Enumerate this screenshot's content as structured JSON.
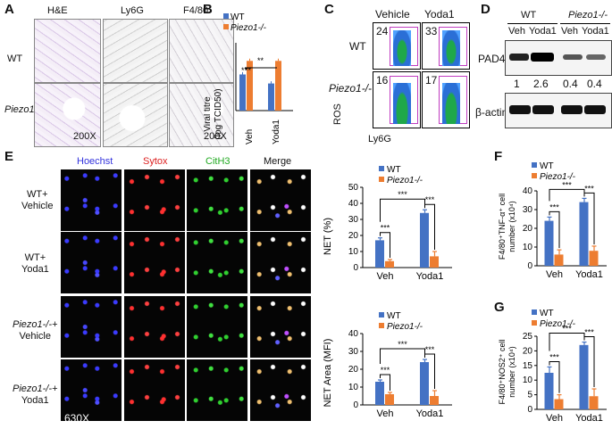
{
  "panel_letters": {
    "a": "A",
    "b": "B",
    "c": "C",
    "d": "D",
    "e": "E",
    "f": "F",
    "g": "G"
  },
  "colors": {
    "wt": "#4472C4",
    "ko": "#ED7D31",
    "gate": "#C03CC0"
  },
  "panel_a": {
    "cols": [
      "H&E",
      "Ly6G",
      "F4/80"
    ],
    "rows": [
      "WT",
      "Piezo1-/-"
    ],
    "mag": [
      "200X",
      "200X"
    ]
  },
  "panel_b": {
    "ylabel": "Viral titre",
    "ylabel2": "(log TCID50)",
    "sig1": "**",
    "sig2": "**",
    "sig3": "**"
  },
  "panel_c": {
    "cols": [
      "Vehicle",
      "Yoda1"
    ],
    "rows": [
      "WT",
      "Piezo1-/-"
    ],
    "values": [
      "24",
      "33",
      "16",
      "17"
    ],
    "xlabel": "Ly6G",
    "ylabel": "ROS"
  },
  "panel_d": {
    "header_wt": "WT",
    "header_ko": "Piezo1-/-",
    "lanes": [
      "Veh",
      "Yoda1",
      "Veh",
      "Yoda1"
    ],
    "pad4": "PAD4",
    "actin": "β-actin",
    "quant": [
      "1",
      "2.6",
      "0.4",
      "0.4"
    ]
  },
  "panel_e": {
    "cols": [
      "Hoechst",
      "Sytox",
      "CitH3",
      "Merge"
    ],
    "rows": [
      [
        "WT+",
        "Vehicle"
      ],
      [
        "WT+",
        "Yoda1"
      ],
      [
        "Piezo1-/-+",
        "Vehicle"
      ],
      [
        "Piezo1-/-+",
        "Yoda1"
      ]
    ],
    "mag": "630X"
  },
  "sig": "***",
  "legend": {
    "wt": "WT",
    "ko": "Piezo1-/-"
  },
  "chart_data": [
    {
      "id": "B",
      "type": "bar",
      "categories": [
        "Veh",
        "Yoda1"
      ],
      "ylabel": "Viral titre (log TCID50)",
      "ylim": [
        0,
        6
      ],
      "series": [
        {
          "name": "WT",
          "values": [
            3.2,
            2.4
          ],
          "errors": [
            0.2,
            0.2
          ]
        },
        {
          "name": "Piezo1-/-",
          "values": [
            4.4,
            4.4
          ],
          "errors": [
            0.2,
            0.2
          ]
        }
      ]
    },
    {
      "id": "E-NET",
      "type": "bar",
      "categories": [
        "Veh",
        "Yoda1"
      ],
      "ylabel": "NET (%)",
      "ylim": [
        0,
        50
      ],
      "yticks": [
        0,
        10,
        20,
        30,
        40,
        50
      ],
      "series": [
        {
          "name": "WT",
          "values": [
            17,
            34
          ],
          "errors": [
            1.5,
            2
          ]
        },
        {
          "name": "Piezo1-/-",
          "values": [
            4,
            7
          ],
          "errors": [
            1,
            3
          ]
        }
      ]
    },
    {
      "id": "E-Area",
      "type": "bar",
      "categories": [
        "Veh",
        "Yoda1"
      ],
      "ylabel": "NET Area (MFI)",
      "ylim": [
        0,
        40
      ],
      "yticks": [
        0,
        10,
        20,
        30,
        40
      ],
      "series": [
        {
          "name": "WT",
          "values": [
            13,
            24
          ],
          "errors": [
            1,
            1.5
          ]
        },
        {
          "name": "Piezo1-/-",
          "values": [
            6,
            5
          ],
          "errors": [
            1,
            3
          ]
        }
      ]
    },
    {
      "id": "F",
      "type": "bar",
      "categories": [
        "Veh",
        "Yoda1"
      ],
      "ylabel": "F4/80+TNF-α+ cell number (x10⁴)",
      "ylim": [
        0,
        40
      ],
      "yticks": [
        0,
        10,
        20,
        30,
        40
      ],
      "series": [
        {
          "name": "WT",
          "values": [
            24,
            34
          ],
          "errors": [
            2,
            2
          ]
        },
        {
          "name": "Piezo1-/-",
          "values": [
            6,
            8
          ],
          "errors": [
            2.5,
            2.5
          ]
        }
      ]
    },
    {
      "id": "G",
      "type": "bar",
      "categories": [
        "Veh",
        "Yoda1"
      ],
      "ylabel": "F4/80+NOS2+ cell number (x10⁴)",
      "ylim": [
        0,
        25
      ],
      "yticks": [
        0,
        5,
        10,
        15,
        20,
        25
      ],
      "series": [
        {
          "name": "WT",
          "values": [
            12.5,
            22
          ],
          "errors": [
            2,
            1
          ]
        },
        {
          "name": "Piezo1-/-",
          "values": [
            3.5,
            4.5
          ],
          "errors": [
            1.5,
            2.5
          ]
        }
      ]
    }
  ]
}
